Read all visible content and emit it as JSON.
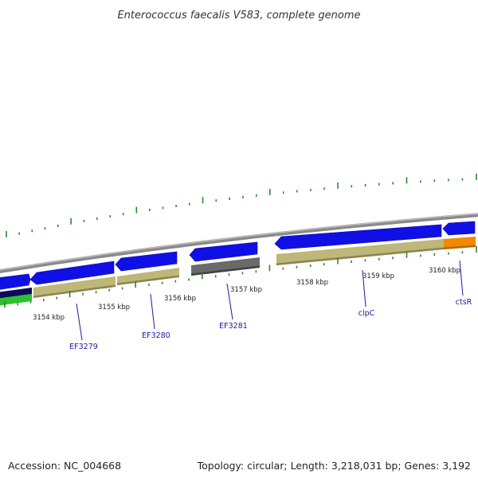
{
  "title": "Enterococcus faecalis V583, complete genome",
  "footer": {
    "accession": "Accession: NC_004668",
    "summary": "Topology: circular; Length: 3,218,031 bp; Genes: 3,192"
  },
  "ruler_labels": [
    "3154 kbp",
    "3155 kbp",
    "3156 kbp",
    "3157 kbp",
    "3158 kbp",
    "3159 kbp",
    "3160 kbp"
  ],
  "gene_labels": [
    "EF3279",
    "EF3280",
    "EF3281",
    "clpC",
    "ctsR"
  ],
  "colors": {
    "gene_forward": "#1010e6",
    "cds_khaki": "#bdb77a",
    "cds_gray": "#6a6a6a",
    "cds_orange": "#f08a00",
    "cds_green": "#2ec02e",
    "cds_navy": "#0b0b5c",
    "tick_green": "#2a8a2a",
    "backbone": "#8a8a8a",
    "label_blue": "#1a1aa0"
  }
}
